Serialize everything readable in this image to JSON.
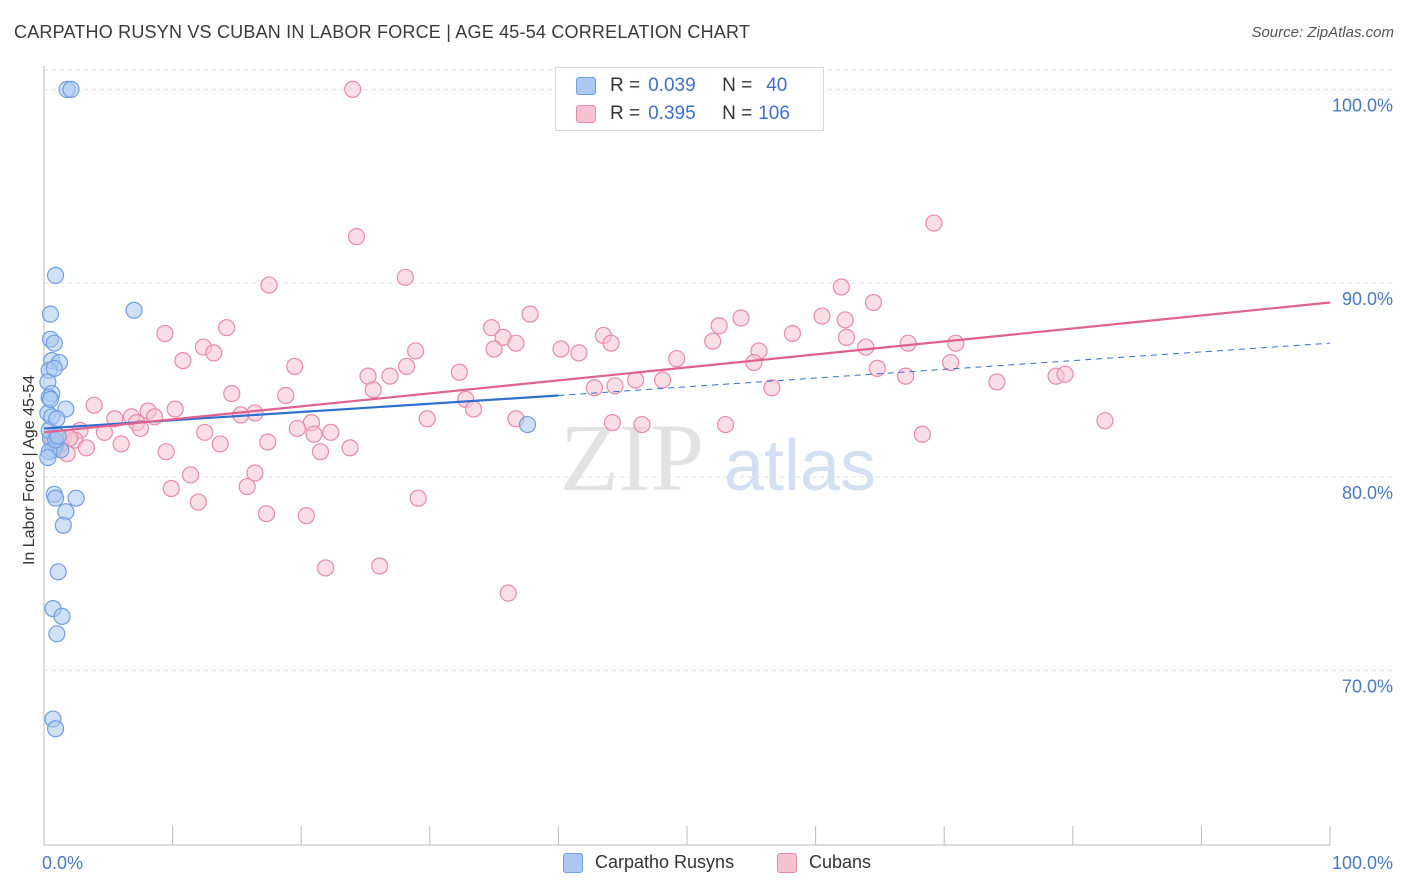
{
  "title": "CARPATHO RUSYN VS CUBAN IN LABOR FORCE | AGE 45-54 CORRELATION CHART",
  "source": "Source: ZipAtlas.com",
  "watermark": {
    "zip": "ZIP",
    "atlas": "atlas"
  },
  "colors": {
    "blue_fill": "#aac8f0",
    "blue_stroke": "#6f9ee0",
    "blue_line": "#2f6fce",
    "pink_fill": "#f6c2d2",
    "pink_stroke": "#e88aa8",
    "pink_line": "#e0608e",
    "axis_label": "#4a78c2",
    "grid": "#dddddd"
  },
  "legend": {
    "rows": [
      {
        "r_label": "R =",
        "r_value": "0.039",
        "n_label": "N =",
        "n_value": "40"
      },
      {
        "r_label": "R =",
        "r_value": "0.395",
        "n_label": "N =",
        "n_value": "106"
      }
    ]
  },
  "bottom_legend": [
    "Carpatho Rusyns",
    "Cubans"
  ],
  "chart_data": {
    "type": "scatter",
    "title": "CARPATHO RUSYN VS CUBAN IN LABOR FORCE | AGE 45-54 CORRELATION CHART",
    "xlabel": "",
    "ylabel": "In Labor Force | Age 45-54",
    "xlim": [
      0,
      100
    ],
    "ylim": [
      61,
      101
    ],
    "x_tick_labels": [
      "0.0%",
      "100.0%"
    ],
    "y_ticks": [
      70,
      80,
      90,
      100
    ],
    "y_tick_labels": [
      "70.0%",
      "80.0%",
      "90.0%",
      "100.0%"
    ],
    "grid": true,
    "legend_position": "top-center",
    "series": [
      {
        "name": "Carpatho Rusyns",
        "r": 0.039,
        "n": 40,
        "trend": {
          "x": [
            0,
            40
          ],
          "y": [
            82.5,
            84.2
          ],
          "dashed_extension_to": [
            100,
            86.9
          ]
        },
        "points": [
          [
            1.8,
            100
          ],
          [
            2.1,
            100
          ],
          [
            0.9,
            90.4
          ],
          [
            0.5,
            88.4
          ],
          [
            7.0,
            88.6
          ],
          [
            0.5,
            87.1
          ],
          [
            0.8,
            86.9
          ],
          [
            0.6,
            86.0
          ],
          [
            1.2,
            85.9
          ],
          [
            0.4,
            85.5
          ],
          [
            0.8,
            85.6
          ],
          [
            0.3,
            84.9
          ],
          [
            0.6,
            84.3
          ],
          [
            0.4,
            84.1
          ],
          [
            0.3,
            83.3
          ],
          [
            0.6,
            83.1
          ],
          [
            1.7,
            83.5
          ],
          [
            0.5,
            82.0
          ],
          [
            0.9,
            81.6
          ],
          [
            0.7,
            81.4
          ],
          [
            1.3,
            81.4
          ],
          [
            0.4,
            81.3
          ],
          [
            0.3,
            81.0
          ],
          [
            37.6,
            82.7
          ],
          [
            0.8,
            79.1
          ],
          [
            0.9,
            78.9
          ],
          [
            2.5,
            78.9
          ],
          [
            1.7,
            78.2
          ],
          [
            1.5,
            77.5
          ],
          [
            1.1,
            75.1
          ],
          [
            0.7,
            73.2
          ],
          [
            1.4,
            72.8
          ],
          [
            1.0,
            71.9
          ],
          [
            0.7,
            67.5
          ],
          [
            0.9,
            67.0
          ],
          [
            0.4,
            82.4
          ],
          [
            0.9,
            81.9
          ],
          [
            1.1,
            82.1
          ],
          [
            0.5,
            84.0
          ],
          [
            1.0,
            83.0
          ]
        ]
      },
      {
        "name": "Cubans",
        "r": 0.395,
        "n": 106,
        "trend": {
          "x": [
            0,
            100
          ],
          "y": [
            82.3,
            89.0
          ]
        },
        "points": [
          [
            24.0,
            100
          ],
          [
            69.2,
            93.1
          ],
          [
            24.3,
            92.4
          ],
          [
            28.1,
            90.3
          ],
          [
            17.5,
            89.9
          ],
          [
            62.0,
            89.8
          ],
          [
            64.5,
            89.0
          ],
          [
            37.8,
            88.4
          ],
          [
            54.2,
            88.2
          ],
          [
            60.5,
            88.3
          ],
          [
            62.3,
            88.1
          ],
          [
            34.8,
            87.7
          ],
          [
            52.5,
            87.8
          ],
          [
            14.2,
            87.7
          ],
          [
            9.4,
            87.4
          ],
          [
            43.5,
            87.3
          ],
          [
            35.7,
            87.2
          ],
          [
            58.2,
            87.4
          ],
          [
            62.4,
            87.2
          ],
          [
            52.0,
            87.0
          ],
          [
            67.2,
            86.9
          ],
          [
            70.9,
            86.9
          ],
          [
            36.7,
            86.9
          ],
          [
            44.1,
            86.9
          ],
          [
            12.4,
            86.7
          ],
          [
            63.9,
            86.7
          ],
          [
            28.9,
            86.5
          ],
          [
            40.2,
            86.6
          ],
          [
            41.6,
            86.4
          ],
          [
            55.6,
            86.5
          ],
          [
            35.0,
            86.6
          ],
          [
            13.2,
            86.4
          ],
          [
            49.2,
            86.1
          ],
          [
            10.8,
            86.0
          ],
          [
            70.5,
            85.9
          ],
          [
            19.5,
            85.7
          ],
          [
            55.2,
            85.9
          ],
          [
            28.2,
            85.7
          ],
          [
            64.8,
            85.6
          ],
          [
            32.3,
            85.4
          ],
          [
            25.2,
            85.2
          ],
          [
            26.9,
            85.2
          ],
          [
            67.0,
            85.2
          ],
          [
            78.7,
            85.2
          ],
          [
            79.4,
            85.3
          ],
          [
            48.1,
            85.0
          ],
          [
            46.0,
            85.0
          ],
          [
            74.1,
            84.9
          ],
          [
            42.8,
            84.6
          ],
          [
            44.4,
            84.7
          ],
          [
            56.6,
            84.6
          ],
          [
            25.6,
            84.5
          ],
          [
            14.6,
            84.3
          ],
          [
            18.8,
            84.2
          ],
          [
            32.8,
            84.0
          ],
          [
            3.9,
            83.7
          ],
          [
            10.2,
            83.5
          ],
          [
            16.4,
            83.3
          ],
          [
            33.4,
            83.5
          ],
          [
            6.8,
            83.1
          ],
          [
            8.1,
            83.4
          ],
          [
            8.6,
            83.1
          ],
          [
            5.5,
            83.0
          ],
          [
            15.3,
            83.2
          ],
          [
            36.7,
            83.0
          ],
          [
            29.8,
            83.0
          ],
          [
            82.5,
            82.9
          ],
          [
            44.2,
            82.8
          ],
          [
            46.5,
            82.7
          ],
          [
            53.0,
            82.7
          ],
          [
            20.8,
            82.8
          ],
          [
            7.2,
            82.8
          ],
          [
            2.8,
            82.4
          ],
          [
            4.7,
            82.3
          ],
          [
            7.5,
            82.5
          ],
          [
            12.5,
            82.3
          ],
          [
            19.7,
            82.5
          ],
          [
            21.0,
            82.2
          ],
          [
            22.3,
            82.3
          ],
          [
            68.3,
            82.2
          ],
          [
            1.5,
            82.0
          ],
          [
            2.4,
            81.9
          ],
          [
            6.0,
            81.7
          ],
          [
            13.7,
            81.7
          ],
          [
            17.4,
            81.8
          ],
          [
            3.3,
            81.5
          ],
          [
            1.1,
            81.5
          ],
          [
            1.8,
            81.2
          ],
          [
            21.5,
            81.3
          ],
          [
            23.8,
            81.5
          ],
          [
            9.5,
            81.3
          ],
          [
            16.4,
            80.2
          ],
          [
            11.4,
            80.1
          ],
          [
            15.8,
            79.5
          ],
          [
            9.9,
            79.4
          ],
          [
            29.1,
            78.9
          ],
          [
            12.0,
            78.7
          ],
          [
            17.3,
            78.1
          ],
          [
            20.4,
            78.0
          ],
          [
            21.9,
            75.3
          ],
          [
            26.1,
            75.4
          ],
          [
            36.1,
            74.0
          ],
          [
            0.9,
            82.2
          ],
          [
            1.3,
            81.7
          ],
          [
            0.7,
            81.9
          ],
          [
            2.0,
            82.0
          ]
        ]
      }
    ]
  }
}
